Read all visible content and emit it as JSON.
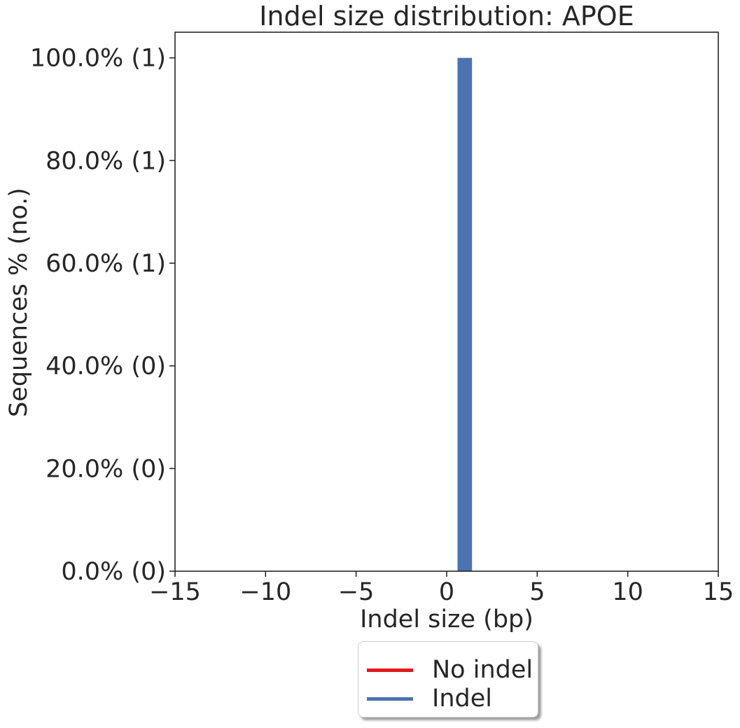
{
  "chart_data": {
    "type": "bar",
    "title": "Indel size distribution: APOE",
    "xlabel": "Indel size (bp)",
    "ylabel": "Sequences % (no.)",
    "xlim": [
      -15,
      15
    ],
    "ylim": [
      0,
      105
    ],
    "x_ticks": [
      -15,
      -10,
      -5,
      0,
      5,
      10,
      15
    ],
    "x_tick_labels": [
      "−15",
      "−10",
      "−5",
      "0",
      "5",
      "10",
      "15"
    ],
    "y_ticks": [
      0,
      20,
      40,
      60,
      80,
      100
    ],
    "y_tick_labels": [
      "0.0% (0)",
      "20.0% (0)",
      "40.0% (0)",
      "60.0% (1)",
      "80.0% (1)",
      "100.0% (1)"
    ],
    "bar_width": 0.8,
    "series": [
      {
        "name": "Indel",
        "color": "#4c72b0",
        "x": [
          1
        ],
        "values": [
          100
        ]
      }
    ],
    "legend": {
      "placement": "bottom-center",
      "entries": [
        {
          "label": "No indel",
          "color": "#e41a1c"
        },
        {
          "label": "Indel",
          "color": "#4c72b0"
        }
      ]
    },
    "grid": false
  }
}
